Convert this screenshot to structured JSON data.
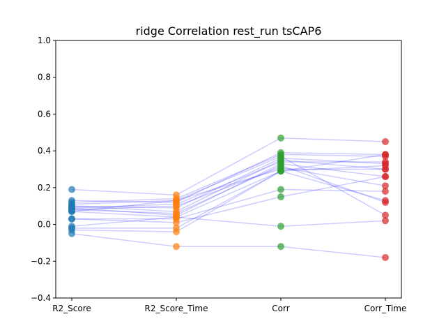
{
  "chart_data": {
    "type": "scatter",
    "title": "ridge Correlation rest_run tsCAP6",
    "xlabel": "",
    "ylabel": "",
    "categories": [
      "R2_Score",
      "R2_Score_Time",
      "Corr",
      "Corr_Time"
    ],
    "ylim": [
      -0.4,
      1.0
    ],
    "yticks": [
      "−0.4",
      "−0.2",
      "0.0",
      "0.2",
      "0.4",
      "0.6",
      "0.8",
      "1.0"
    ],
    "grid": false,
    "colors": {
      "R2_Score": "#1f77b4",
      "R2_Score_Time": "#ff7f0e",
      "Corr": "#2ca02c",
      "Corr_Time": "#d62728",
      "connector": "#0000ff"
    },
    "subjects": [
      [
        0.19,
        0.16,
        0.47,
        0.45
      ],
      [
        0.13,
        0.12,
        0.39,
        0.38
      ],
      [
        0.12,
        0.14,
        0.38,
        0.37
      ],
      [
        0.11,
        0.13,
        0.37,
        0.05
      ],
      [
        0.1,
        0.09,
        0.36,
        0.33
      ],
      [
        0.1,
        0.07,
        0.35,
        0.3
      ],
      [
        0.09,
        0.11,
        0.34,
        0.34
      ],
      [
        0.09,
        0.05,
        0.33,
        0.26
      ],
      [
        0.08,
        0.06,
        0.32,
        0.12
      ],
      [
        0.08,
        0.1,
        0.31,
        0.21
      ],
      [
        0.07,
        0.13,
        0.3,
        0.3
      ],
      [
        0.07,
        0.04,
        0.29,
        0.38
      ],
      [
        0.03,
        0.03,
        0.19,
        0.18
      ],
      [
        0.03,
        0.01,
        0.15,
        0.26
      ],
      [
        -0.01,
        0.04,
        -0.01,
        0.02
      ],
      [
        -0.02,
        -0.02,
        0.29,
        0.13
      ],
      [
        -0.03,
        -0.04,
        0.29,
        0.32
      ],
      [
        -0.05,
        -0.12,
        -0.12,
        -0.18
      ]
    ]
  }
}
